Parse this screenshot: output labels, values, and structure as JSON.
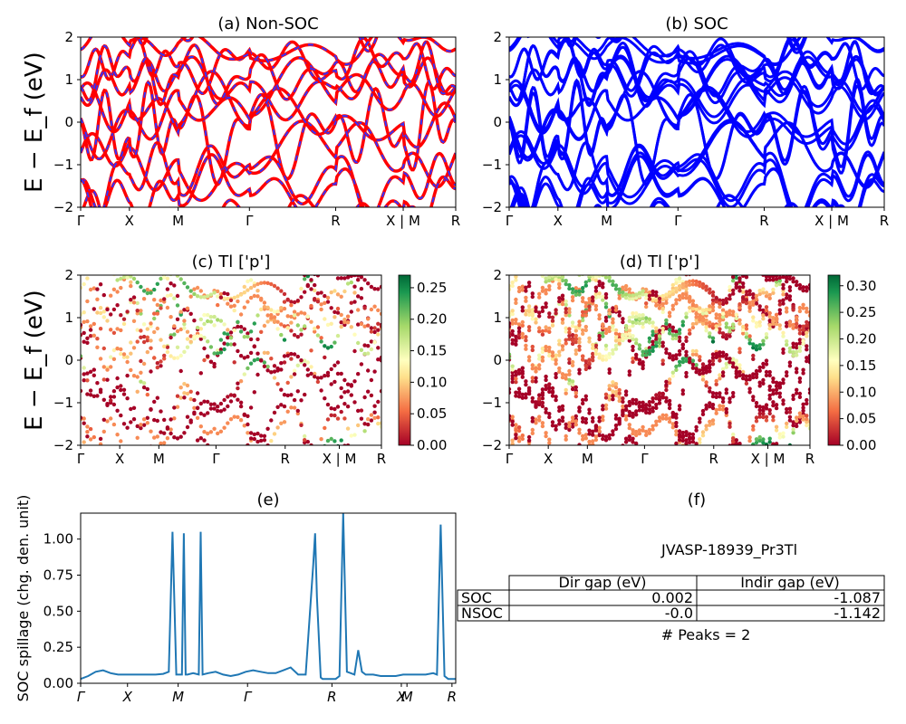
{
  "panels": {
    "a": {
      "title": "(a) Non-SOC"
    },
    "b": {
      "title": "(b) SOC"
    },
    "c": {
      "title": "(c)  Tl ['p']"
    },
    "d": {
      "title": "(d) Tl ['p']"
    },
    "e": {
      "title": "(e)"
    },
    "f": {
      "title": "(f)"
    }
  },
  "band_ylabel": "E − E_f (eV)",
  "spillage_ylabel": "SOC spillage (chg. den. unit)",
  "kpath_labels": [
    "Γ",
    "X",
    "M",
    "Γ",
    "R",
    "X | M",
    "R"
  ],
  "spillage_kpath_labels": [
    "Γ",
    "X",
    "M",
    "Γ",
    "R",
    "X",
    "M",
    "R"
  ],
  "band_yticks": [
    "2",
    "1",
    "0",
    "−1",
    "−2"
  ],
  "colorbar_c_ticks": [
    "0.00",
    "0.05",
    "0.10",
    "0.15",
    "0.20",
    "0.25"
  ],
  "colorbar_d_ticks": [
    "0.00",
    "0.05",
    "0.10",
    "0.15",
    "0.20",
    "0.25",
    "0.30"
  ],
  "colors": {
    "nonsoc_line": "#ff0000",
    "nonsoc_dash": "#3333ff",
    "soc_line": "#0000ff",
    "spillage_line": "#1f77b4"
  },
  "chart_data": [
    {
      "type": "line",
      "panel": "a",
      "title": "(a) Non-SOC",
      "ylabel": "E − E_f (eV)",
      "ylim": [
        -2,
        2
      ],
      "x_ticks": [
        "Γ",
        "X",
        "M",
        "Γ",
        "R",
        "X | M",
        "R"
      ],
      "kpath_positions": [
        0,
        0.13,
        0.26,
        0.45,
        0.68,
        0.86,
        1.0
      ],
      "series_count": 12,
      "sample_band_minimum_near_Gamma": -0.9
    },
    {
      "type": "line",
      "panel": "b",
      "title": "(b) SOC",
      "ylabel": "E − E_f (eV)",
      "ylim": [
        -2,
        2
      ],
      "x_ticks": [
        "Γ",
        "X",
        "M",
        "Γ",
        "R",
        "X | M",
        "R"
      ],
      "kpath_positions": [
        0,
        0.13,
        0.26,
        0.45,
        0.68,
        0.86,
        1.0
      ],
      "series_count": 24
    },
    {
      "type": "scatter",
      "panel": "c",
      "title": "(c)  Tl ['p']",
      "ylabel": "E − E_f (eV)",
      "ylim": [
        -2,
        2
      ],
      "colorbar_range": [
        0,
        0.27
      ],
      "colormap": "RdYlGn",
      "x_ticks": [
        "Γ",
        "X",
        "M",
        "Γ",
        "R",
        "X | M",
        "R"
      ]
    },
    {
      "type": "scatter",
      "panel": "d",
      "title": "(d) Tl ['p']",
      "ylabel": "E − E_f (eV)",
      "ylim": [
        -2,
        2
      ],
      "colorbar_range": [
        0,
        0.32
      ],
      "colormap": "RdYlGn",
      "x_ticks": [
        "Γ",
        "X",
        "M",
        "Γ",
        "R",
        "X | M",
        "R"
      ]
    },
    {
      "type": "line",
      "panel": "e",
      "title": "(e)",
      "ylabel": "SOC spillage (chg. den. unit)",
      "ylim": [
        0,
        1.18
      ],
      "xlim": [
        0,
        1
      ],
      "yticks": [
        "0.00",
        "0.25",
        "0.50",
        "0.75",
        "1.00"
      ],
      "x_ticks": [
        "Γ",
        "X",
        "M",
        "Γ",
        "R",
        "X",
        "M",
        "R"
      ],
      "x": [
        0,
        0.02,
        0.04,
        0.06,
        0.08,
        0.1,
        0.12,
        0.14,
        0.16,
        0.18,
        0.2,
        0.22,
        0.235,
        0.245,
        0.255,
        0.27,
        0.275,
        0.28,
        0.285,
        0.3,
        0.315,
        0.32,
        0.325,
        0.34,
        0.36,
        0.38,
        0.4,
        0.42,
        0.44,
        0.46,
        0.48,
        0.5,
        0.52,
        0.54,
        0.56,
        0.58,
        0.59,
        0.6,
        0.62,
        0.625,
        0.63,
        0.64,
        0.645,
        0.66,
        0.68,
        0.69,
        0.7,
        0.71,
        0.72,
        0.73,
        0.74,
        0.75,
        0.76,
        0.78,
        0.8,
        0.82,
        0.84,
        0.86,
        0.88,
        0.9,
        0.92,
        0.94,
        0.95,
        0.96,
        0.97,
        0.98,
        1.0
      ],
      "y": [
        0.03,
        0.05,
        0.08,
        0.09,
        0.07,
        0.06,
        0.06,
        0.06,
        0.06,
        0.06,
        0.06,
        0.065,
        0.08,
        1.05,
        0.06,
        0.06,
        1.04,
        0.06,
        0.06,
        0.07,
        0.06,
        1.05,
        0.06,
        0.07,
        0.08,
        0.06,
        0.05,
        0.06,
        0.08,
        0.09,
        0.08,
        0.07,
        0.07,
        0.09,
        0.11,
        0.06,
        0.06,
        0.06,
        0.82,
        1.04,
        0.6,
        0.04,
        0.03,
        0.03,
        0.03,
        0.05,
        1.18,
        0.08,
        0.07,
        0.06,
        0.23,
        0.08,
        0.06,
        0.06,
        0.05,
        0.05,
        0.05,
        0.06,
        0.06,
        0.06,
        0.06,
        0.07,
        0.06,
        1.1,
        0.05,
        0.03,
        0.03
      ]
    },
    {
      "type": "table",
      "panel": "f",
      "title": "(f)",
      "caption": "JVASP-18939_Pr3Tl",
      "columns": [
        "Dir gap (eV)",
        "Indir gap (eV)"
      ],
      "rows": [
        {
          "label": "SOC",
          "dir": "0.002",
          "indir": "-1.087"
        },
        {
          "label": "NSOC",
          "dir": "-0.0",
          "indir": "-1.142"
        }
      ],
      "footer": "# Peaks = 2"
    }
  ]
}
